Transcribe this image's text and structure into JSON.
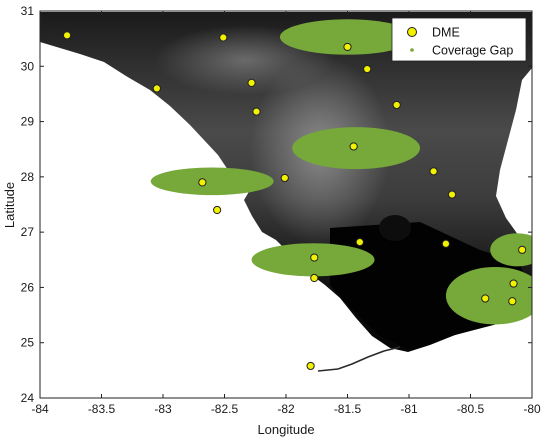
{
  "chart_data": {
    "type": "scatter",
    "subtype": "map-overlay",
    "xlabel": "Longitude",
    "ylabel": "Latitude",
    "xlim": [
      -84,
      -80
    ],
    "ylim": [
      24,
      31
    ],
    "xticks": [
      -84,
      -83.5,
      -83,
      -82.5,
      -82,
      -81.5,
      -81,
      -80.5,
      -80
    ],
    "yticks": [
      24,
      25,
      26,
      27,
      28,
      29,
      30,
      31
    ],
    "xtick_labels": [
      "-84",
      "-83.5",
      "-83",
      "-82.5",
      "-82",
      "-81.5",
      "-81",
      "-80.5",
      "-80"
    ],
    "ytick_labels": [
      "24",
      "25",
      "26",
      "27",
      "28",
      "29",
      "30",
      "31"
    ],
    "grid": false,
    "legend": {
      "position": "top-right",
      "entries": [
        "DME",
        "Coverage Gap"
      ]
    },
    "colors": {
      "dme_fill": "#f2f200",
      "dme_edge": "#222222",
      "coverage_gap": "#76a83a",
      "ocean": "#ffffff",
      "land_low": "#0a0a0a",
      "land_high": "#8c8c8c"
    },
    "series": [
      {
        "name": "DME",
        "marker": "circle",
        "points": [
          {
            "lon": -83.78,
            "lat": 30.56
          },
          {
            "lon": -82.51,
            "lat": 30.52
          },
          {
            "lon": -81.5,
            "lat": 30.35
          },
          {
            "lon": -81.34,
            "lat": 29.95
          },
          {
            "lon": -82.28,
            "lat": 29.7
          },
          {
            "lon": -83.05,
            "lat": 29.6
          },
          {
            "lon": -81.1,
            "lat": 29.3
          },
          {
            "lon": -82.24,
            "lat": 29.18
          },
          {
            "lon": -81.45,
            "lat": 28.55
          },
          {
            "lon": -80.8,
            "lat": 28.1
          },
          {
            "lon": -82.01,
            "lat": 27.98
          },
          {
            "lon": -82.68,
            "lat": 27.9
          },
          {
            "lon": -80.65,
            "lat": 27.68
          },
          {
            "lon": -82.56,
            "lat": 27.4
          },
          {
            "lon": -81.4,
            "lat": 26.82
          },
          {
            "lon": -80.7,
            "lat": 26.79
          },
          {
            "lon": -80.08,
            "lat": 26.68
          },
          {
            "lon": -81.77,
            "lat": 26.54
          },
          {
            "lon": -81.77,
            "lat": 26.17
          },
          {
            "lon": -80.15,
            "lat": 26.07
          },
          {
            "lon": -80.38,
            "lat": 25.8
          },
          {
            "lon": -80.16,
            "lat": 25.75
          },
          {
            "lon": -81.8,
            "lat": 24.58
          }
        ]
      },
      {
        "name": "Coverage Gap",
        "marker": "dot",
        "regions": [
          {
            "center": [
              -81.5,
              30.53
            ],
            "radius": [
              0.55,
              0.32
            ]
          },
          {
            "center": [
              -81.43,
              28.52
            ],
            "radius": [
              0.52,
              0.38
            ]
          },
          {
            "center": [
              -82.6,
              27.92
            ],
            "radius": [
              0.5,
              0.25
            ]
          },
          {
            "center": [
              -81.78,
              26.5
            ],
            "radius": [
              0.5,
              0.3
            ]
          },
          {
            "center": [
              -80.12,
              26.68
            ],
            "radius": [
              0.22,
              0.3
            ]
          },
          {
            "center": [
              -80.3,
              25.85
            ],
            "radius": [
              0.4,
              0.52
            ]
          }
        ]
      }
    ]
  }
}
